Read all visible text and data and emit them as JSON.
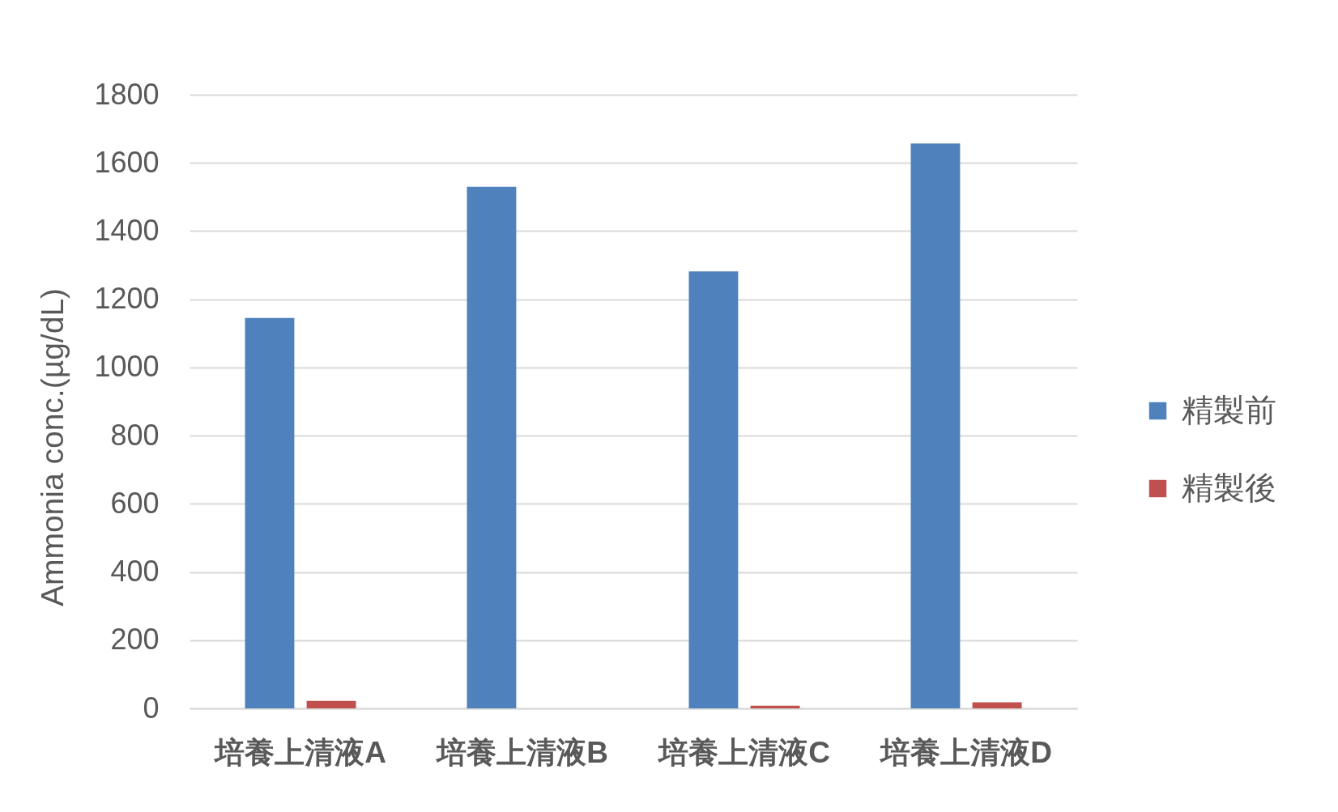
{
  "chart_data": {
    "type": "bar",
    "ylabel": "Ammonia conc.(µg/dL)",
    "categories": [
      "培養上清液A",
      "培養上清液B",
      "培養上清液C",
      "培養上清液D"
    ],
    "series": [
      {
        "name": "精製前",
        "color": "#4f81bd",
        "values": [
          1145,
          1530,
          1282,
          1657
        ]
      },
      {
        "name": "精製後",
        "color": "#c0504d",
        "values": [
          22,
          null,
          8,
          18
        ]
      }
    ],
    "ylim": [
      0,
      1800
    ],
    "yticks": [
      0,
      200,
      400,
      600,
      800,
      1000,
      1200,
      1400,
      1600,
      1800
    ],
    "grid": "y",
    "legend": "right"
  }
}
